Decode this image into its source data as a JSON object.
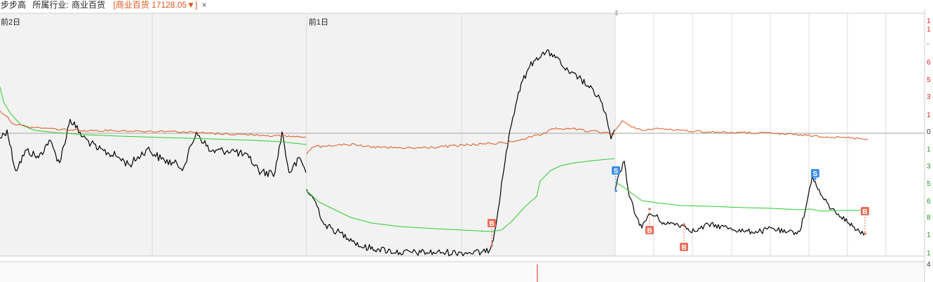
{
  "header": {
    "stock_name": "步步高",
    "industry_label": "所属行业:",
    "industry_name": "商业百货",
    "index_bracket_open": "[",
    "index_name": "商业百货",
    "index_value": "17128.05",
    "index_arrow": "▼",
    "index_bracket_close": "]",
    "close_symbol": "×"
  },
  "day_labels": [
    "前2日",
    "前1日"
  ],
  "y_axis_ticks": [
    {
      "text": "1",
      "color": "#e02020"
    },
    {
      "text": "1",
      "color": "#e02020"
    },
    {
      "text": "-",
      "color": "#e02020"
    },
    {
      "text": "6",
      "color": "#e02020"
    },
    {
      "text": "5",
      "color": "#e02020"
    },
    {
      "text": "3",
      "color": "#e02020"
    },
    {
      "text": "1",
      "color": "#e02020"
    },
    {
      "text": "0",
      "color": "#333333"
    },
    {
      "text": "1",
      "color": "#1a9a1a"
    },
    {
      "text": "3",
      "color": "#1a9a1a"
    },
    {
      "text": "5",
      "color": "#1a9a1a"
    },
    {
      "text": "6",
      "color": "#1a9a1a"
    },
    {
      "text": "8",
      "color": "#1a9a1a"
    },
    {
      "text": "1",
      "color": "#1a9a1a"
    },
    {
      "text": "1",
      "color": "#1a9a1a"
    },
    {
      "text": "4",
      "color": "#333333"
    }
  ],
  "trade_markers": [
    {
      "label": "B",
      "color": "#e8705a"
    },
    {
      "label": "S",
      "color": "#3c8fe8"
    },
    {
      "label": "B",
      "color": "#e8705a"
    },
    {
      "label": "B",
      "color": "#e8705a"
    },
    {
      "label": "S",
      "color": "#3c8fe8"
    },
    {
      "label": "B",
      "color": "#e8705a"
    }
  ],
  "colors": {
    "price_line": "#000000",
    "avg_line": "#2ecc2e",
    "index_line": "#d9561b",
    "grid": "#dcdcdc",
    "prev_day_bg": "#f2f2f2",
    "buy_marker": "#e8705a",
    "sell_marker": "#3c8fe8"
  }
}
